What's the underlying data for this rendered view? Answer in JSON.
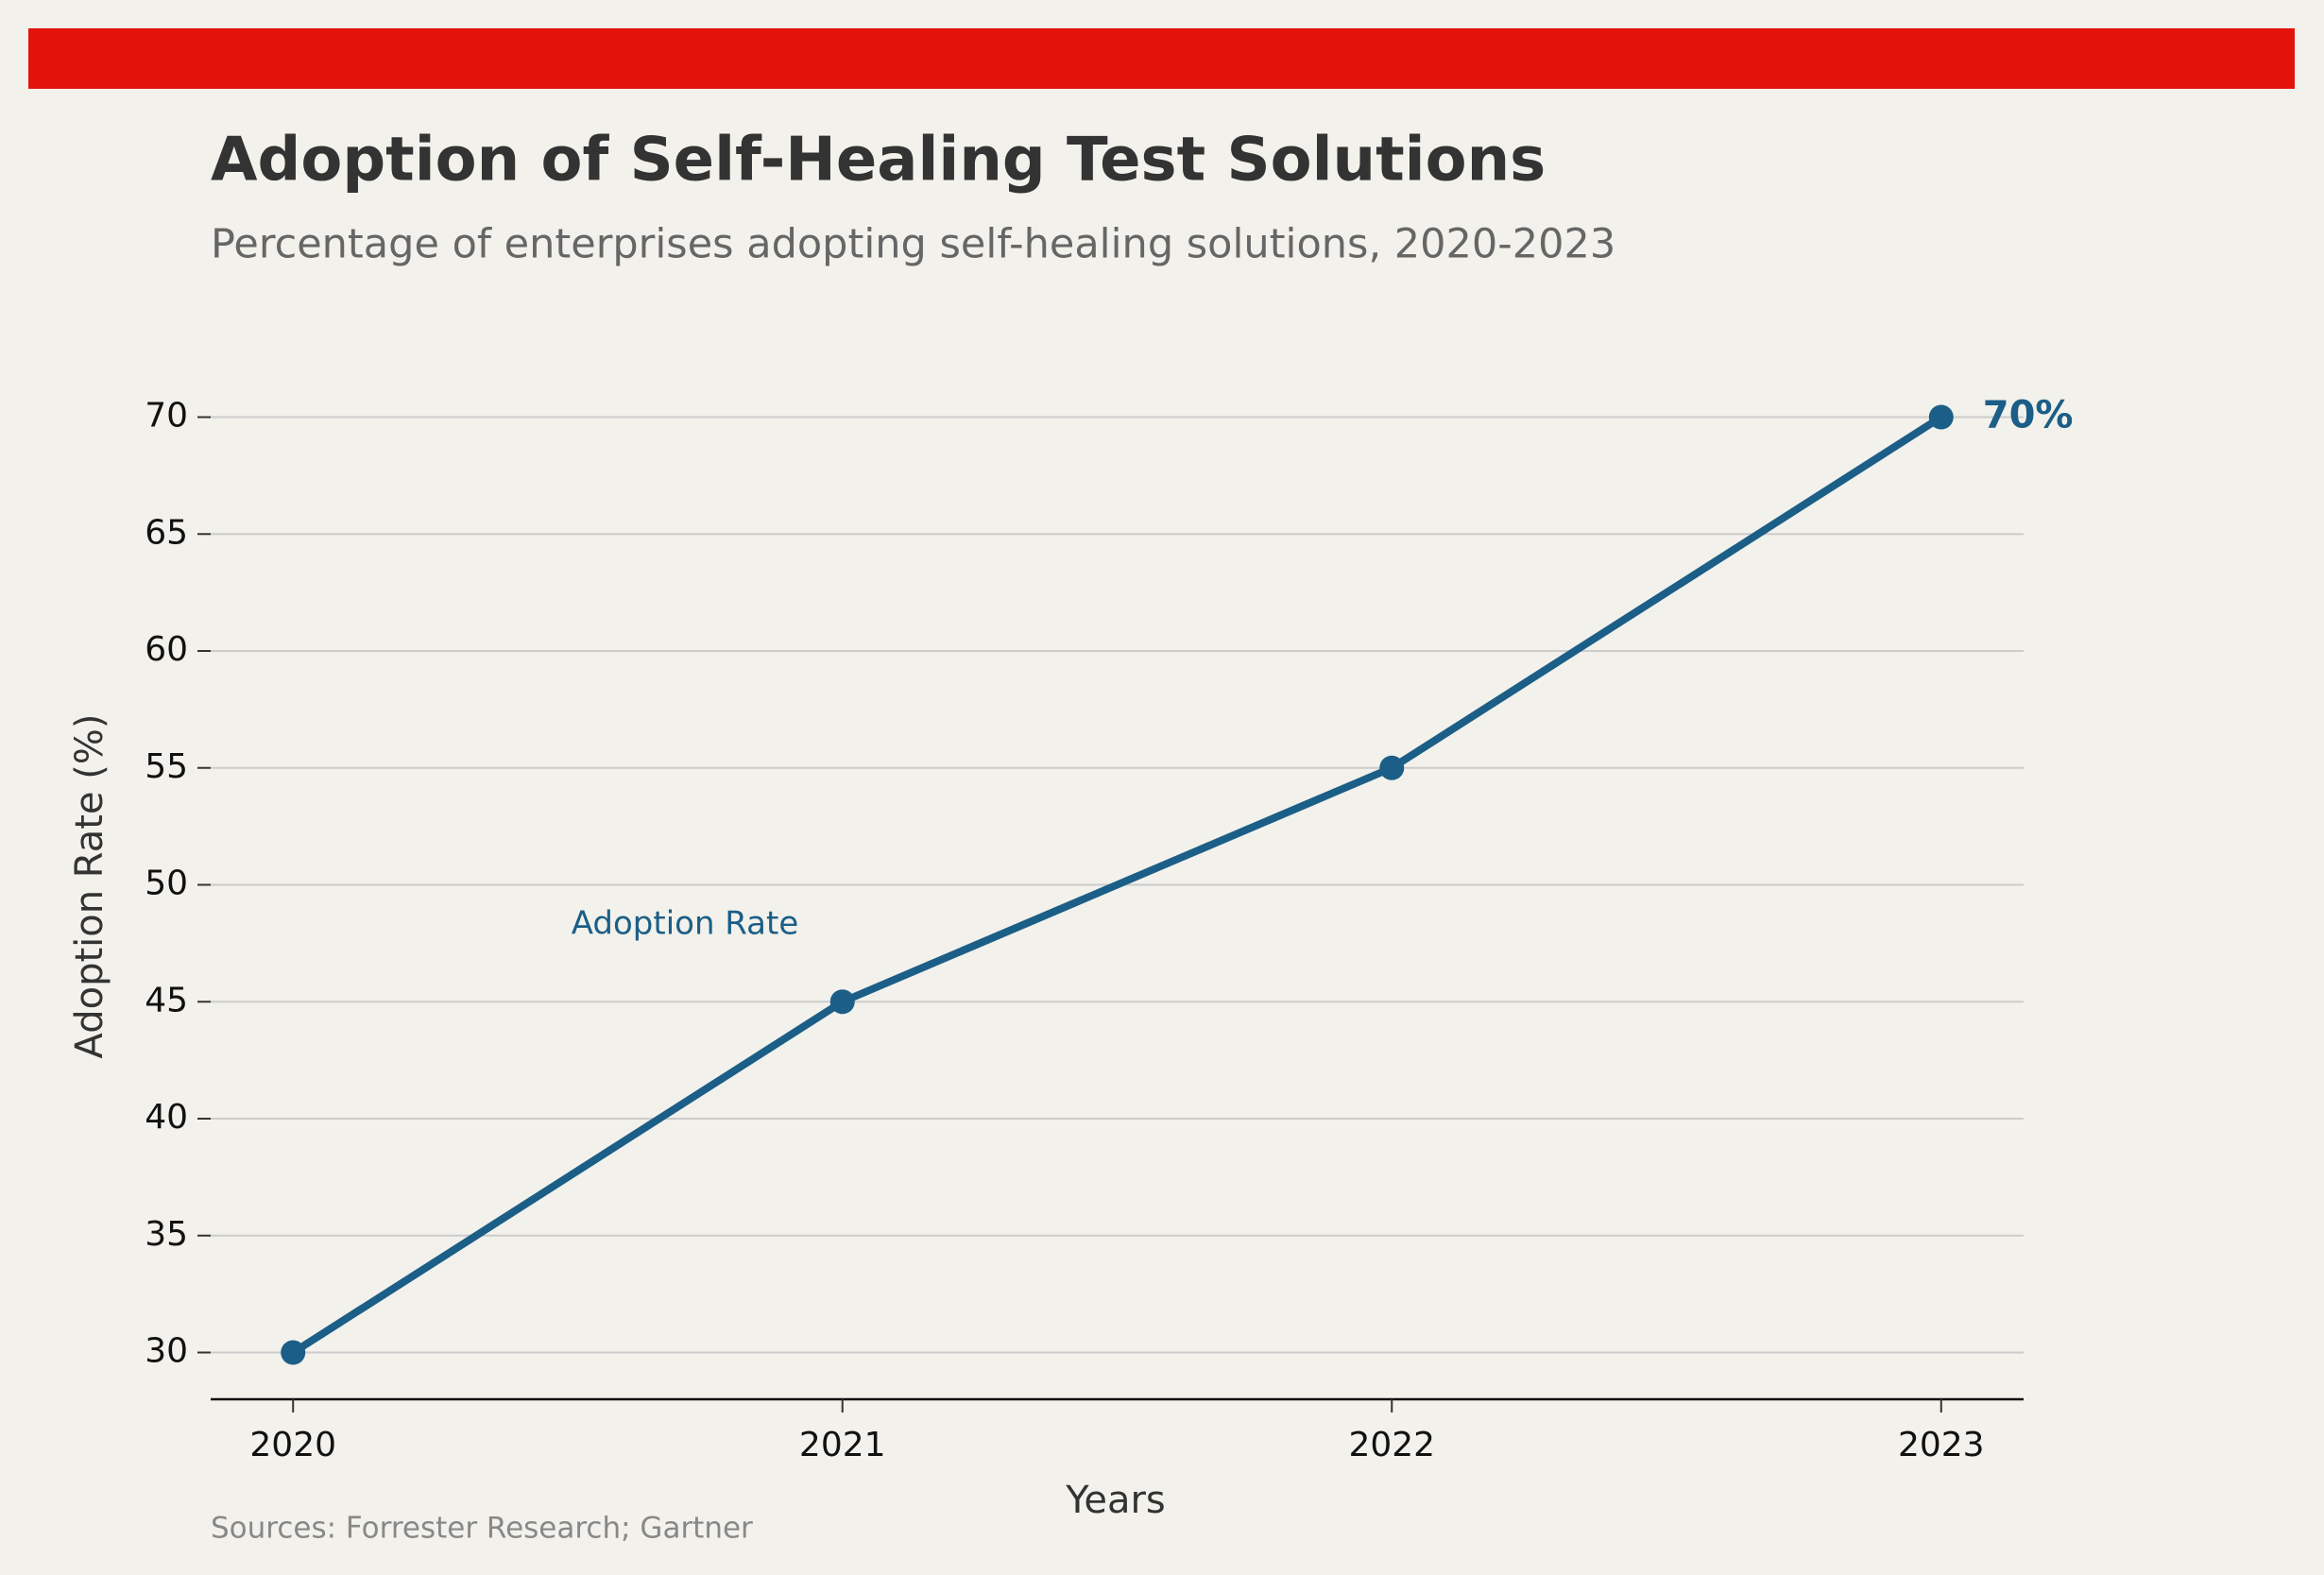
{
  "chart_data": {
    "type": "line",
    "title": "Adoption of Self-Healing Test Solutions",
    "subtitle": "Percentage of enterprises adopting self-healing solutions, 2020-2023",
    "x_label": "Years",
    "y_label": "Adoption Rate (%)",
    "source": "Sources: Forrester Research; Gartner",
    "x": [
      2020,
      2021,
      2022,
      2023
    ],
    "series": [
      {
        "name": "Adoption Rate",
        "color": "#1b5e87",
        "values": [
          30,
          45,
          55,
          70
        ],
        "value_labels": [
          null,
          null,
          null,
          "70%"
        ]
      }
    ],
    "xlim": [
      2019.85,
      2023.15
    ],
    "xticks": [
      2020,
      2021,
      2022,
      2023
    ],
    "ylim": [
      28,
      72
    ],
    "yticks": [
      30,
      35,
      40,
      45,
      50,
      55,
      60,
      65,
      70
    ],
    "grid": true,
    "accent_color": "#e3120b"
  }
}
